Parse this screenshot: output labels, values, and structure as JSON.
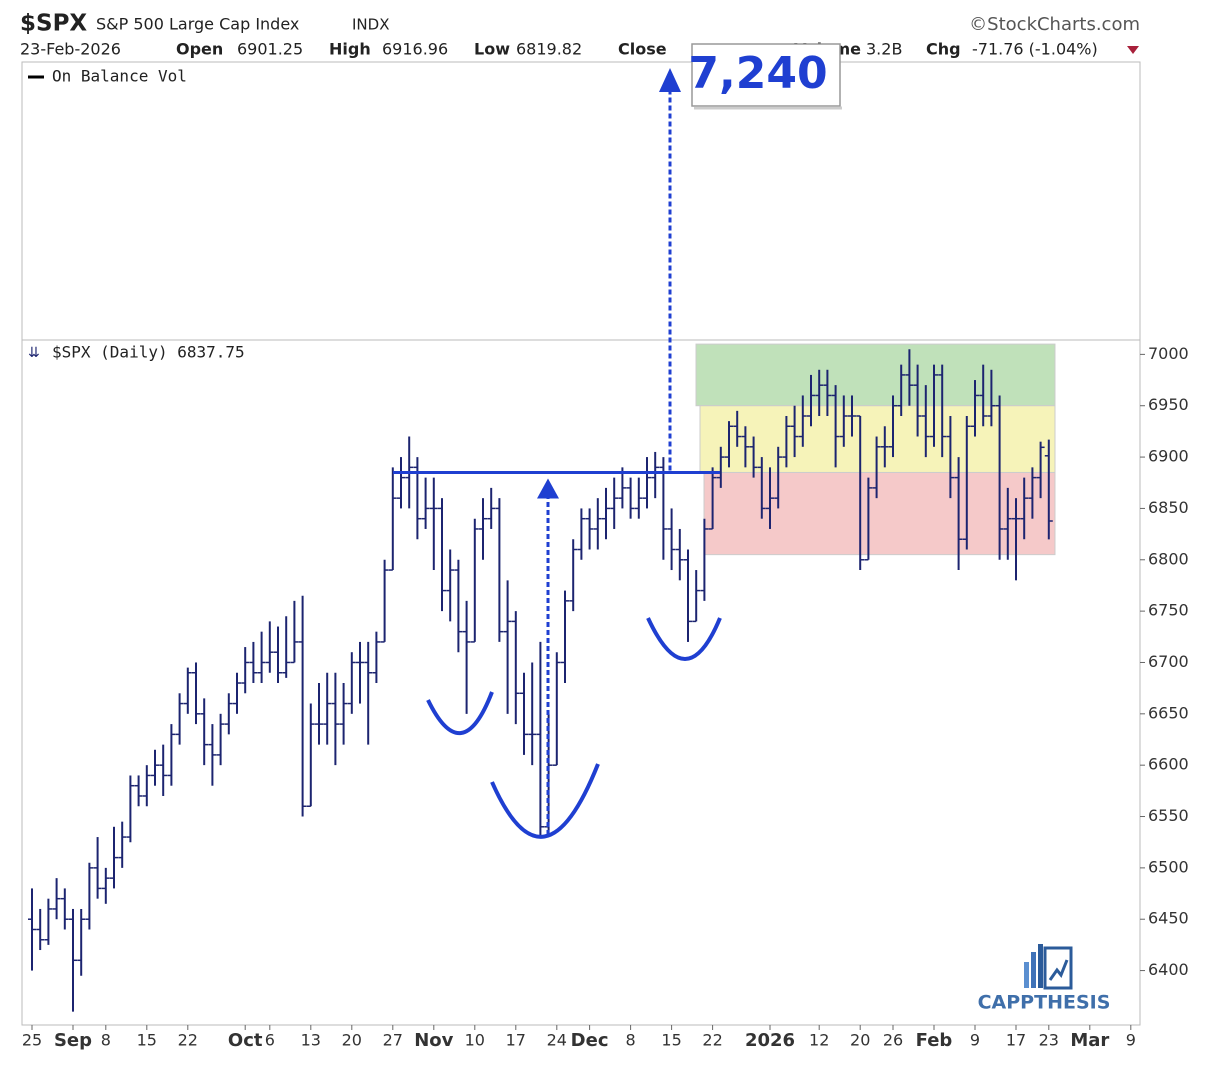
{
  "chart_data": {
    "type": "ohlc",
    "symbol": "$SPX",
    "name": "S&P 500 Large Cap Index",
    "exchange": "INDX",
    "source": "©StockCharts.com",
    "date": "23-Feb-2026",
    "quote": {
      "open_label": "Open",
      "open": 6901.25,
      "high_label": "High",
      "high": 6916.96,
      "low_label": "Low",
      "low": 6819.82,
      "close_label": "Close",
      "volume_label": "Volume",
      "volume": "3.2B",
      "chg_label": "Chg",
      "chg": "-71.76 (-1.04%)"
    },
    "indicator_label": "On Balance Vol",
    "price_label": "$SPX (Daily) 6837.75",
    "target_label": "7,240",
    "logo": "CAPPTHESIS",
    "color": "#1c2470",
    "resistance": 6885,
    "resistance_color": "#1f3fd1",
    "zones": [
      {
        "from": 6950,
        "to": 7010,
        "color": "#b5dcae"
      },
      {
        "from": 6885,
        "to": 6950,
        "color": "#f4f1ad"
      },
      {
        "from": 6805,
        "to": 6885,
        "color": "#f3bfbf"
      }
    ],
    "ylim": [
      6347,
      7014
    ],
    "yticks": [
      6400,
      6450,
      6500,
      6550,
      6600,
      6650,
      6700,
      6750,
      6800,
      6850,
      6900,
      6950,
      7000
    ],
    "categories": [
      "25",
      null,
      null,
      null,
      null,
      "Sep",
      null,
      null,
      null,
      "8",
      null,
      null,
      null,
      null,
      "15",
      null,
      null,
      null,
      null,
      "22",
      null,
      null,
      null,
      null,
      null,
      null,
      "Oct",
      null,
      null,
      "6",
      null,
      null,
      null,
      null,
      "13",
      null,
      null,
      null,
      null,
      "20",
      null,
      null,
      null,
      null,
      "27",
      null,
      null,
      null,
      null,
      "Nov",
      null,
      null,
      null,
      null,
      "10",
      null,
      null,
      null,
      null,
      "17",
      null,
      null,
      null,
      null,
      "24",
      null,
      null,
      null,
      "Dec",
      null,
      null,
      null,
      null,
      "8",
      null,
      null,
      null,
      null,
      "15",
      null,
      null,
      null,
      null,
      "22",
      null,
      null,
      null,
      null,
      null,
      null,
      "2026",
      null,
      null,
      null,
      null,
      null,
      "12",
      null,
      null,
      null,
      null,
      "20",
      null,
      null,
      null,
      "26",
      null,
      null,
      null,
      null,
      "Feb",
      null,
      null,
      null,
      null,
      "9",
      null,
      null,
      null,
      null,
      "17",
      null,
      null,
      null,
      "23",
      null,
      null,
      null,
      null,
      "Mar",
      null,
      null,
      null,
      null,
      "9"
    ],
    "open": [
      6450,
      6440,
      6430,
      6460,
      6470,
      6450,
      6410,
      6450,
      6500,
      6480,
      6490,
      6510,
      6530,
      6580,
      6570,
      6590,
      6600,
      6590,
      6630,
      6660,
      6690,
      6650,
      6620,
      6610,
      6640,
      6660,
      6680,
      6700,
      6690,
      6700,
      6710,
      6690,
      6700,
      6720,
      6560,
      6640,
      6640,
      6660,
      6640,
      6660,
      6700,
      6700,
      6690,
      6720,
      6790,
      6860,
      6880,
      6890,
      6840,
      6850,
      6850,
      6770,
      6790,
      6730,
      6720,
      6830,
      6840,
      6850,
      6730,
      6740,
      6670,
      6630,
      6630,
      6540,
      6600,
      6700,
      6760,
      6810,
      6840,
      6830,
      6840,
      6850,
      6860,
      6870,
      6850,
      6860,
      6880,
      6890,
      6830,
      6810,
      6800,
      6740,
      6770,
      6830,
      6880,
      6900,
      6930,
      6920,
      6910,
      6890,
      6850,
      6860,
      6900,
      6930,
      6920,
      6940,
      6960,
      6970,
      6960,
      6920,
      6940,
      6940,
      6800,
      6870,
      6910,
      6910,
      6950,
      6980,
      6970,
      6940,
      6920,
      6980,
      6920,
      6880,
      6820,
      6930,
      6960,
      6940,
      6950,
      6830,
      6840,
      6840,
      6860,
      6880,
      6901.25,
      null,
      null,
      null,
      null,
      null,
      null,
      null,
      null,
      null,
      null
    ],
    "high": [
      6480,
      6460,
      6470,
      6490,
      6480,
      6460,
      6460,
      6505,
      6530,
      6500,
      6540,
      6545,
      6590,
      6590,
      6600,
      6615,
      6620,
      6640,
      6670,
      6695,
      6700,
      6665,
      6640,
      6650,
      6670,
      6690,
      6715,
      6720,
      6730,
      6740,
      6735,
      6745,
      6760,
      6765,
      6660,
      6680,
      6690,
      6690,
      6680,
      6710,
      6720,
      6720,
      6730,
      6800,
      6890,
      6900,
      6920,
      6900,
      6880,
      6880,
      6860,
      6810,
      6800,
      6760,
      6840,
      6860,
      6870,
      6860,
      6780,
      6750,
      6690,
      6700,
      6720,
      6650,
      6710,
      6770,
      6820,
      6850,
      6850,
      6860,
      6870,
      6880,
      6890,
      6880,
      6880,
      6900,
      6905,
      6900,
      6850,
      6830,
      6810,
      6790,
      6840,
      6890,
      6910,
      6935,
      6945,
      6930,
      6920,
      6900,
      6890,
      6910,
      6940,
      6950,
      6960,
      6980,
      6985,
      6985,
      6970,
      6960,
      6960,
      6940,
      6880,
      6920,
      6930,
      6960,
      6990,
      7005,
      6990,
      6970,
      6990,
      6990,
      6940,
      6900,
      6940,
      6975,
      6990,
      6985,
      6960,
      6870,
      6860,
      6880,
      6890,
      6915,
      6916.96,
      null,
      null,
      null,
      null,
      null,
      null,
      null,
      null,
      null,
      null
    ],
    "low": [
      6400,
      6420,
      6425,
      6450,
      6440,
      6360,
      6395,
      6440,
      6470,
      6465,
      6480,
      6500,
      6525,
      6560,
      6560,
      6580,
      6570,
      6580,
      6620,
      6650,
      6640,
      6600,
      6580,
      6600,
      6630,
      6650,
      6670,
      6680,
      6680,
      6690,
      6680,
      6685,
      6700,
      6550,
      6560,
      6620,
      6620,
      6600,
      6620,
      6650,
      6660,
      6620,
      6680,
      6720,
      6790,
      6850,
      6850,
      6820,
      6830,
      6790,
      6750,
      6740,
      6710,
      6650,
      6720,
      6800,
      6830,
      6720,
      6650,
      6640,
      6610,
      6600,
      6530,
      6530,
      6600,
      6680,
      6750,
      6800,
      6810,
      6810,
      6820,
      6830,
      6850,
      6840,
      6840,
      6850,
      6860,
      6800,
      6790,
      6780,
      6720,
      6740,
      6760,
      6830,
      6870,
      6890,
      6910,
      6890,
      6880,
      6840,
      6830,
      6850,
      6890,
      6900,
      6910,
      6930,
      6940,
      6940,
      6890,
      6910,
      6920,
      6790,
      6800,
      6860,
      6890,
      6900,
      6940,
      6950,
      6920,
      6900,
      6910,
      6900,
      6860,
      6790,
      6810,
      6920,
      6930,
      6930,
      6800,
      6800,
      6780,
      6820,
      6840,
      6860,
      6819.82,
      null,
      null,
      null,
      null,
      null,
      null,
      null,
      null,
      null,
      null
    ],
    "close": [
      6440,
      6430,
      6460,
      6470,
      6450,
      6410,
      6450,
      6500,
      6480,
      6490,
      6510,
      6530,
      6580,
      6570,
      6590,
      6600,
      6590,
      6630,
      6660,
      6690,
      6650,
      6620,
      6610,
      6640,
      6660,
      6680,
      6700,
      6690,
      6700,
      6710,
      6690,
      6700,
      6720,
      6560,
      6640,
      6640,
      6660,
      6640,
      6660,
      6700,
      6700,
      6690,
      6720,
      6790,
      6860,
      6880,
      6890,
      6840,
      6850,
      6850,
      6770,
      6790,
      6730,
      6720,
      6830,
      6840,
      6850,
      6730,
      6740,
      6670,
      6630,
      6630,
      6540,
      6600,
      6700,
      6760,
      6810,
      6840,
      6830,
      6840,
      6850,
      6860,
      6870,
      6850,
      6860,
      6880,
      6890,
      6830,
      6810,
      6800,
      6740,
      6770,
      6830,
      6880,
      6900,
      6930,
      6920,
      6910,
      6890,
      6850,
      6860,
      6900,
      6930,
      6920,
      6940,
      6960,
      6970,
      6960,
      6920,
      6940,
      6940,
      6800,
      6870,
      6910,
      6910,
      6950,
      6980,
      6970,
      6940,
      6920,
      6980,
      6920,
      6880,
      6820,
      6930,
      6960,
      6940,
      6950,
      6830,
      6840,
      6840,
      6860,
      6880,
      6909.51,
      6837.75,
      null,
      null,
      null,
      null,
      null,
      null,
      null,
      null,
      null,
      null
    ]
  }
}
